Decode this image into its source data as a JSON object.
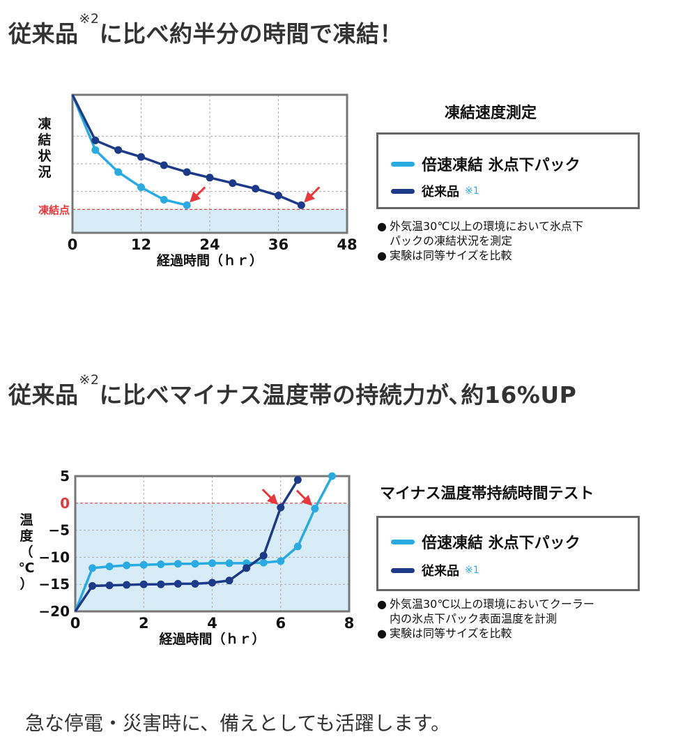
{
  "headline1": {
    "text": "従来品",
    "sup": "※2",
    "rest": "に比べ約半分の時間で凍結！"
  },
  "headline2": {
    "text": "従来品",
    "sup": "※2",
    "rest": "に比べマイナス温度帯の持続力が､約16%UP"
  },
  "colors": {
    "fast": "#29abe2",
    "conventional": "#1c3a87",
    "freeze_line": "#e8383d",
    "zone_fill": "#d7ecf7",
    "grid": "#aaaaaa",
    "frame": "#777777"
  },
  "legend": {
    "fast_label": "倍速凍結 氷点下パック",
    "conventional_label": "従来品",
    "conventional_note": "※1"
  },
  "chart_data": [
    {
      "type": "line",
      "title": "凍結速度測定",
      "xlabel": "経過時間（ｈｒ）",
      "ylabel": "凍結状況",
      "freeze_label": "凍結点",
      "xlim": [
        0,
        48
      ],
      "ylim": [
        0,
        100
      ],
      "freeze_level": 17,
      "xticks": [
        0,
        12,
        24,
        36,
        48
      ],
      "xtick_labels": [
        "0",
        "12",
        "24",
        "36",
        "48"
      ],
      "grid": true,
      "series": [
        {
          "name": "倍速凍結 氷点下パック",
          "color": "#29abe2",
          "x": [
            0,
            4,
            8,
            12,
            16,
            20
          ],
          "y": [
            100,
            60,
            44,
            33,
            24,
            20
          ]
        },
        {
          "name": "従来品",
          "color": "#1c3a87",
          "x": [
            0,
            4,
            8,
            12,
            16,
            20,
            24,
            28,
            32,
            36,
            40
          ],
          "y": [
            100,
            67,
            60,
            55,
            49,
            44,
            40,
            36,
            32,
            27,
            20
          ]
        }
      ],
      "annotations": [
        {
          "type": "arrow",
          "x": 20,
          "y": 20
        },
        {
          "type": "arrow",
          "x": 40,
          "y": 20
        }
      ],
      "notes": [
        "外気温30℃以上の環境において氷点下",
        "パックの凍結状況を測定",
        "実験は同等サイズを比較"
      ]
    },
    {
      "type": "line",
      "title": "マイナス温度帯持続時間テスト",
      "xlabel": "経過時間（ｈｒ）",
      "ylabel": "温度（℃）",
      "xlim": [
        0,
        8
      ],
      "ylim": [
        -20,
        5
      ],
      "freeze_level": 0,
      "xticks": [
        0,
        2,
        4,
        6,
        8
      ],
      "xtick_labels": [
        "0",
        "2",
        "4",
        "6",
        "8"
      ],
      "yticks": [
        5,
        0,
        -5,
        -10,
        -15,
        -20
      ],
      "ytick_labels": [
        "5",
        "0",
        "−5",
        "−10",
        "−15",
        "−20"
      ],
      "grid": true,
      "series": [
        {
          "name": "倍速凍結 氷点下パック",
          "color": "#29abe2",
          "x": [
            0,
            0.5,
            1,
            1.5,
            2,
            2.5,
            3,
            3.5,
            4,
            4.5,
            5,
            5.5,
            6,
            6.5,
            7,
            7.5
          ],
          "y": [
            -20,
            -12,
            -11.7,
            -11.5,
            -11.4,
            -11.3,
            -11.2,
            -11.2,
            -11.1,
            -11.1,
            -11.1,
            -11,
            -10.7,
            -8,
            -1,
            5
          ]
        },
        {
          "name": "従来品",
          "color": "#1c3a87",
          "x": [
            0,
            0.5,
            1,
            1.5,
            2,
            2.5,
            3,
            3.5,
            4,
            4.5,
            5,
            5.5,
            6,
            6.5
          ],
          "y": [
            -20,
            -15.3,
            -15.2,
            -15.1,
            -15,
            -15,
            -14.9,
            -14.9,
            -14.7,
            -14.3,
            -12,
            -9.7,
            -0.8,
            4.3
          ]
        }
      ],
      "annotations": [
        {
          "type": "arrow",
          "x": 6,
          "y": -0.8
        },
        {
          "type": "arrow",
          "x": 7,
          "y": -1
        }
      ],
      "notes": [
        "外気温30℃以上の環境においてクーラー",
        "内の氷点下パック表面温度を計測",
        "実験は同等サイズを比較"
      ]
    }
  ],
  "footer": "急な停電・災害時に、備えとしても活躍します。"
}
